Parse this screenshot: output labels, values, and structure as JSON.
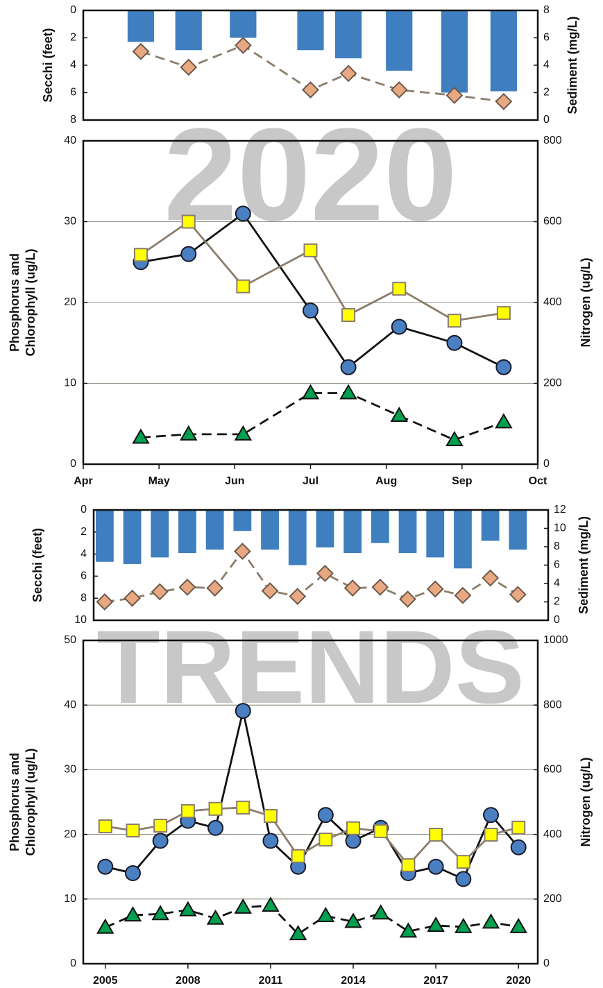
{
  "chart_data": [
    {
      "type": "combo",
      "ylabel": "Secchi (feet)",
      "y2label": "Sediment (mg/L)",
      "xlim": [
        4,
        10
      ],
      "x": [
        4.76,
        5.39,
        6.11,
        7.0,
        7.5,
        8.17,
        8.9,
        9.55
      ],
      "ylim": [
        8,
        0
      ],
      "yticks": [
        0,
        2,
        4,
        6,
        8
      ],
      "y2lim": [
        0,
        8
      ],
      "y2ticks": [
        0,
        2,
        4,
        6,
        8
      ],
      "series": [
        {
          "kind": "bar",
          "color": "#3f7fbf",
          "values": [
            2.3,
            2.9,
            2.0,
            2.9,
            3.5,
            4.4,
            6.0,
            5.9
          ]
        },
        {
          "kind": "line",
          "axis": "y2",
          "marker": "diamond",
          "color": "#e8a882",
          "line_color": "#8b7d6b",
          "dash": true,
          "values": [
            5.0,
            3.85,
            5.45,
            2.2,
            3.4,
            2.2,
            1.8,
            1.35
          ]
        }
      ]
    },
    {
      "type": "line",
      "watermark": "2020",
      "ylabel": [
        "Phosphorus and",
        "Chlorophyll (ug/L)"
      ],
      "y2label": "Nitrogen (ug/L)",
      "xlim": [
        4,
        10
      ],
      "xticks": [
        {
          "value": 4,
          "label": "Apr"
        },
        {
          "value": 5,
          "label": "May"
        },
        {
          "value": 6,
          "label": "Jun"
        },
        {
          "value": 7,
          "label": "Jul"
        },
        {
          "value": 8,
          "label": "Aug"
        },
        {
          "value": 9,
          "label": "Sep"
        },
        {
          "value": 10,
          "label": "Oct"
        }
      ],
      "x": [
        4.76,
        5.39,
        6.11,
        7.0,
        7.5,
        8.17,
        8.9,
        9.55
      ],
      "ylim": [
        0,
        40
      ],
      "yticks": [
        0,
        10,
        20,
        30,
        40
      ],
      "y2lim": [
        0,
        800
      ],
      "y2ticks": [
        0,
        200,
        400,
        600,
        800
      ],
      "grid": true,
      "series": [
        {
          "kind": "line",
          "marker": "circle",
          "color": "#4a7fc1",
          "line_color": "#111111",
          "dash": false,
          "values": [
            25,
            26,
            31,
            19,
            12,
            17,
            15,
            12
          ]
        },
        {
          "kind": "line",
          "axis": "y2",
          "marker": "square",
          "color": "#ffff00",
          "line_color": "#8b7d6b",
          "dash": false,
          "values": [
            518,
            600,
            440,
            529,
            369,
            434,
            355,
            374
          ]
        },
        {
          "kind": "line",
          "marker": "triangle",
          "color": "#00a050",
          "line_color": "#111111",
          "dash": true,
          "values": [
            3.3,
            3.7,
            3.7,
            8.8,
            8.8,
            6.0,
            3.0,
            5.2
          ]
        }
      ]
    },
    {
      "type": "combo",
      "ylabel": "Secchi (feet)",
      "y2label": "Sediment (mg/L)",
      "xlim": [
        2004.6,
        2021.1
      ],
      "x": [
        2005,
        2006,
        2007,
        2008,
        2009,
        2010,
        2011,
        2012,
        2013,
        2014,
        2015,
        2016,
        2017,
        2018,
        2019,
        2020
      ],
      "ylim": [
        10,
        0
      ],
      "yticks": [
        0,
        2,
        4,
        6,
        8,
        10
      ],
      "y2lim": [
        0,
        12
      ],
      "y2ticks": [
        0,
        2,
        4,
        6,
        8,
        10,
        12
      ],
      "series": [
        {
          "kind": "bar",
          "color": "#3f7fbf",
          "values": [
            4.7,
            4.9,
            4.3,
            3.9,
            3.6,
            1.9,
            3.6,
            5.0,
            3.4,
            3.9,
            3.0,
            3.9,
            4.3,
            5.3,
            2.8,
            3.6
          ]
        },
        {
          "kind": "line",
          "axis": "y2",
          "marker": "diamond",
          "color": "#e8a882",
          "line_color": "#8b7d6b",
          "dash": true,
          "values": [
            2.0,
            2.4,
            3.1,
            3.6,
            3.5,
            7.5,
            3.2,
            2.6,
            5.1,
            3.5,
            3.6,
            2.3,
            3.4,
            2.7,
            4.6,
            2.8
          ]
        }
      ]
    },
    {
      "type": "line",
      "watermark": "TRENDS",
      "ylabel": [
        "Phosphorus and",
        "Chlorophyll (ug/L)"
      ],
      "y2label": "Nitrogen (ug/L)",
      "xlim": [
        2004.2,
        2020.7
      ],
      "xticks": [
        2005,
        2008,
        2011,
        2014,
        2017,
        2020
      ],
      "x": [
        2005,
        2006,
        2007,
        2008,
        2009,
        2010,
        2011,
        2012,
        2013,
        2014,
        2015,
        2016,
        2017,
        2018,
        2019,
        2020
      ],
      "ylim": [
        0,
        50
      ],
      "yticks": [
        0,
        10,
        20,
        30,
        40,
        50
      ],
      "y2lim": [
        0,
        1000
      ],
      "y2ticks": [
        0,
        200,
        400,
        600,
        800,
        1000
      ],
      "grid": true,
      "series": [
        {
          "kind": "line",
          "marker": "circle",
          "color": "#4a7fc1",
          "line_color": "#111111",
          "dash": false,
          "values": [
            15.0,
            14.0,
            19.0,
            22.1,
            21.0,
            39.1,
            19.0,
            15.0,
            23.0,
            19.0,
            21.0,
            14.0,
            15.0,
            13.1,
            23.0,
            18.0
          ]
        },
        {
          "kind": "line",
          "axis": "y2",
          "marker": "square",
          "color": "#ffff00",
          "line_color": "#8b7d6b",
          "dash": false,
          "values": [
            425,
            412,
            427,
            472,
            479,
            483,
            457,
            333,
            384,
            419,
            410,
            305,
            399,
            315,
            399,
            421
          ]
        },
        {
          "kind": "line",
          "marker": "triangle",
          "color": "#00a050",
          "line_color": "#111111",
          "dash": true,
          "values": [
            5.6,
            7.5,
            7.7,
            8.3,
            7.0,
            8.7,
            9.0,
            4.6,
            7.4,
            6.5,
            7.8,
            5.0,
            5.9,
            5.7,
            6.4,
            5.7
          ]
        }
      ]
    }
  ]
}
